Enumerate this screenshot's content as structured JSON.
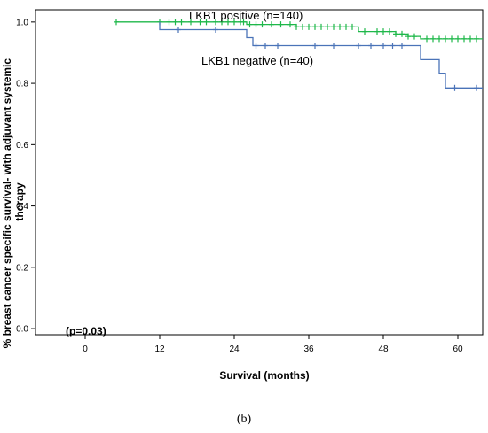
{
  "chart_data": {
    "type": "line",
    "xlabel": "Survival (months)",
    "ylabel": "% breast cancer specific survival- with adjuvant systemic therapy",
    "xlim": [
      -8,
      64
    ],
    "ylim": [
      -0.02,
      1.04
    ],
    "xticks": [
      0,
      12,
      24,
      36,
      48,
      60
    ],
    "xtick_labels": [
      "0",
      "12",
      "24",
      "36",
      "48",
      "60"
    ],
    "yticks": [
      0.0,
      0.2,
      0.4,
      0.6,
      0.8,
      1.0
    ],
    "ytick_labels": [
      "0.0",
      "0.2",
      "0.4",
      "0.6",
      "0.8",
      "1.0"
    ],
    "grid": false,
    "annotation": "(p=0.03)",
    "series": [
      {
        "name": "LKB1 positive (n=140)",
        "color": "#1fb84a",
        "step_x": [
          0,
          26,
          34,
          44,
          50,
          52,
          54,
          64
        ],
        "step_y": [
          1.0,
          0.992,
          0.984,
          0.969,
          0.961,
          0.953,
          0.945,
          0.945
        ],
        "censor_x": [
          5,
          12,
          13.5,
          14.5,
          15.5,
          17,
          18.5,
          19.5,
          21,
          22,
          23,
          24,
          25,
          25.5,
          26.5,
          27.5,
          28.5,
          30,
          31.5,
          33,
          34,
          35,
          36,
          37,
          38,
          39,
          40,
          41,
          42,
          43,
          45,
          47,
          48,
          49,
          50,
          51,
          52,
          53,
          55,
          56,
          57,
          58,
          59,
          60,
          61,
          62,
          63
        ]
      },
      {
        "name": "LKB1 negative (n=40)",
        "color": "#4a73b8",
        "step_x": [
          0,
          12,
          26,
          27,
          54,
          57,
          58,
          64
        ],
        "step_y": [
          1.0,
          0.975,
          0.949,
          0.923,
          0.877,
          0.831,
          0.785,
          0.785
        ],
        "censor_x": [
          15,
          21,
          27.5,
          29,
          31,
          37,
          40,
          44,
          46,
          48,
          49.5,
          51,
          59.5,
          63
        ]
      }
    ]
  }
}
